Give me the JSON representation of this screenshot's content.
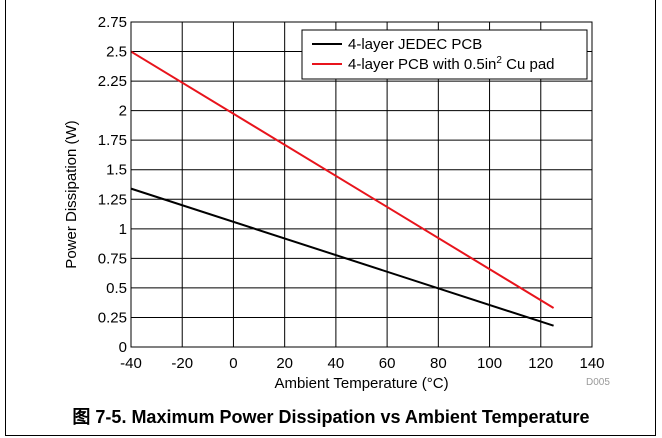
{
  "chart_data": {
    "type": "line",
    "xlabel_parts": [
      "Ambient Temperature (",
      "°",
      "C)"
    ],
    "ylabel": "Power Dissipation (W)",
    "xlim": [
      -40,
      140
    ],
    "ylim": [
      0,
      2.75
    ],
    "x_ticks": [
      -40,
      -20,
      0,
      20,
      40,
      60,
      80,
      100,
      120,
      140
    ],
    "x_tick_labels": [
      "-40",
      "-20",
      "0",
      "20",
      "40",
      "60",
      "80",
      "100",
      "120",
      "140"
    ],
    "y_ticks": [
      0,
      0.25,
      0.5,
      0.75,
      1,
      1.25,
      1.5,
      1.75,
      2,
      2.25,
      2.5,
      2.75
    ],
    "y_tick_labels": [
      "0",
      "0.25",
      "0.5",
      "0.75",
      "1",
      "1.25",
      "1.5",
      "1.75",
      "2",
      "2.25",
      "2.5",
      "2.75"
    ],
    "grid": true,
    "legend_position": "top-right",
    "series": [
      {
        "name": "4-layer JEDEC PCB",
        "color": "#000000",
        "x": [
          -40,
          125
        ],
        "y": [
          1.34,
          0.18
        ]
      },
      {
        "name": "4-layer PCB with 0.5in² Cu pad",
        "color": "#e8141c",
        "x": [
          -40,
          125
        ],
        "y": [
          2.5,
          0.33
        ]
      }
    ],
    "legend_labels": {
      "series1": "4-layer JEDEC PCB",
      "series2_prefix": "4-layer PCB with 0.5in",
      "series2_superscript": "2",
      "series2_suffix": " Cu pad"
    },
    "watermark": "D005"
  },
  "caption": "图 7-5. Maximum Power Dissipation vs Ambient Temperature"
}
